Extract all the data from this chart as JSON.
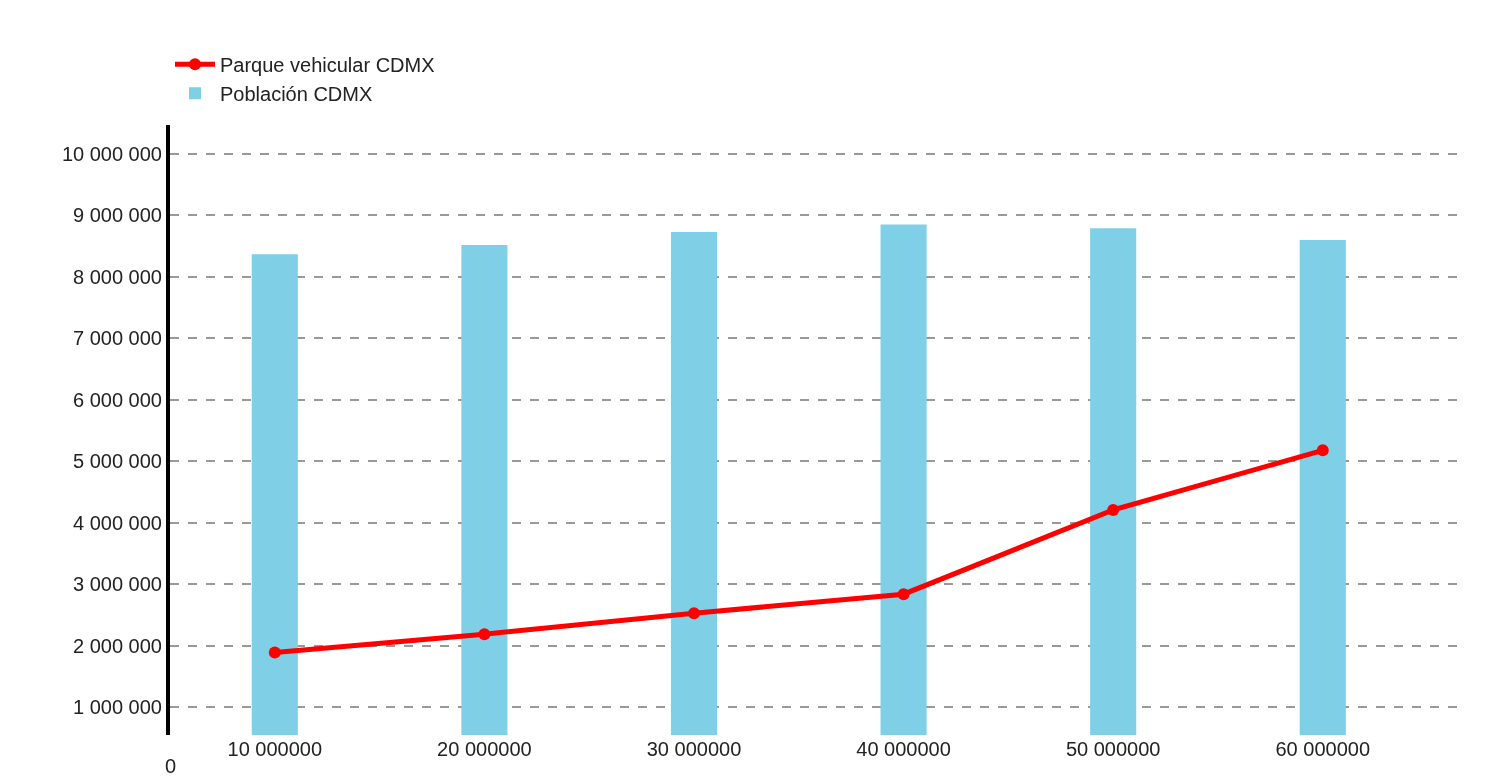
{
  "chart_data": {
    "type": "bar",
    "categories": [
      "10 000000",
      "20 000000",
      "30 000000",
      "40 000000",
      "50 000000",
      "60 000000"
    ],
    "series": [
      {
        "name": "Población CDMX",
        "color": "#7fd0e6",
        "values": [
          8370000,
          8520000,
          8730000,
          8850000,
          8790000,
          8600000
        ]
      },
      {
        "name": "Parque vehicular CDMX",
        "type": "line",
        "color": "#ff0000",
        "values": [
          1890000,
          2190000,
          2530000,
          2840000,
          4210000,
          5180000
        ]
      }
    ],
    "ylim": [
      550000,
      10470000
    ],
    "yticks": [
      {
        "value": 1000000,
        "label": "1 000 000"
      },
      {
        "value": 2000000,
        "label": "2 000 000"
      },
      {
        "value": 3000000,
        "label": "3 000 000"
      },
      {
        "value": 4000000,
        "label": "4 000 000"
      },
      {
        "value": 5000000,
        "label": "5 000 000"
      },
      {
        "value": 6000000,
        "label": "6 000 000"
      },
      {
        "value": 7000000,
        "label": "7 000 000"
      },
      {
        "value": 8000000,
        "label": "8 000 000"
      },
      {
        "value": 9000000,
        "label": "9 000 000"
      },
      {
        "value": 10000000,
        "label": "10 000 000"
      }
    ],
    "annotations": [
      "0"
    ],
    "grid": "y",
    "legend": "top left",
    "marker": "circle",
    "line_style": "solid"
  }
}
